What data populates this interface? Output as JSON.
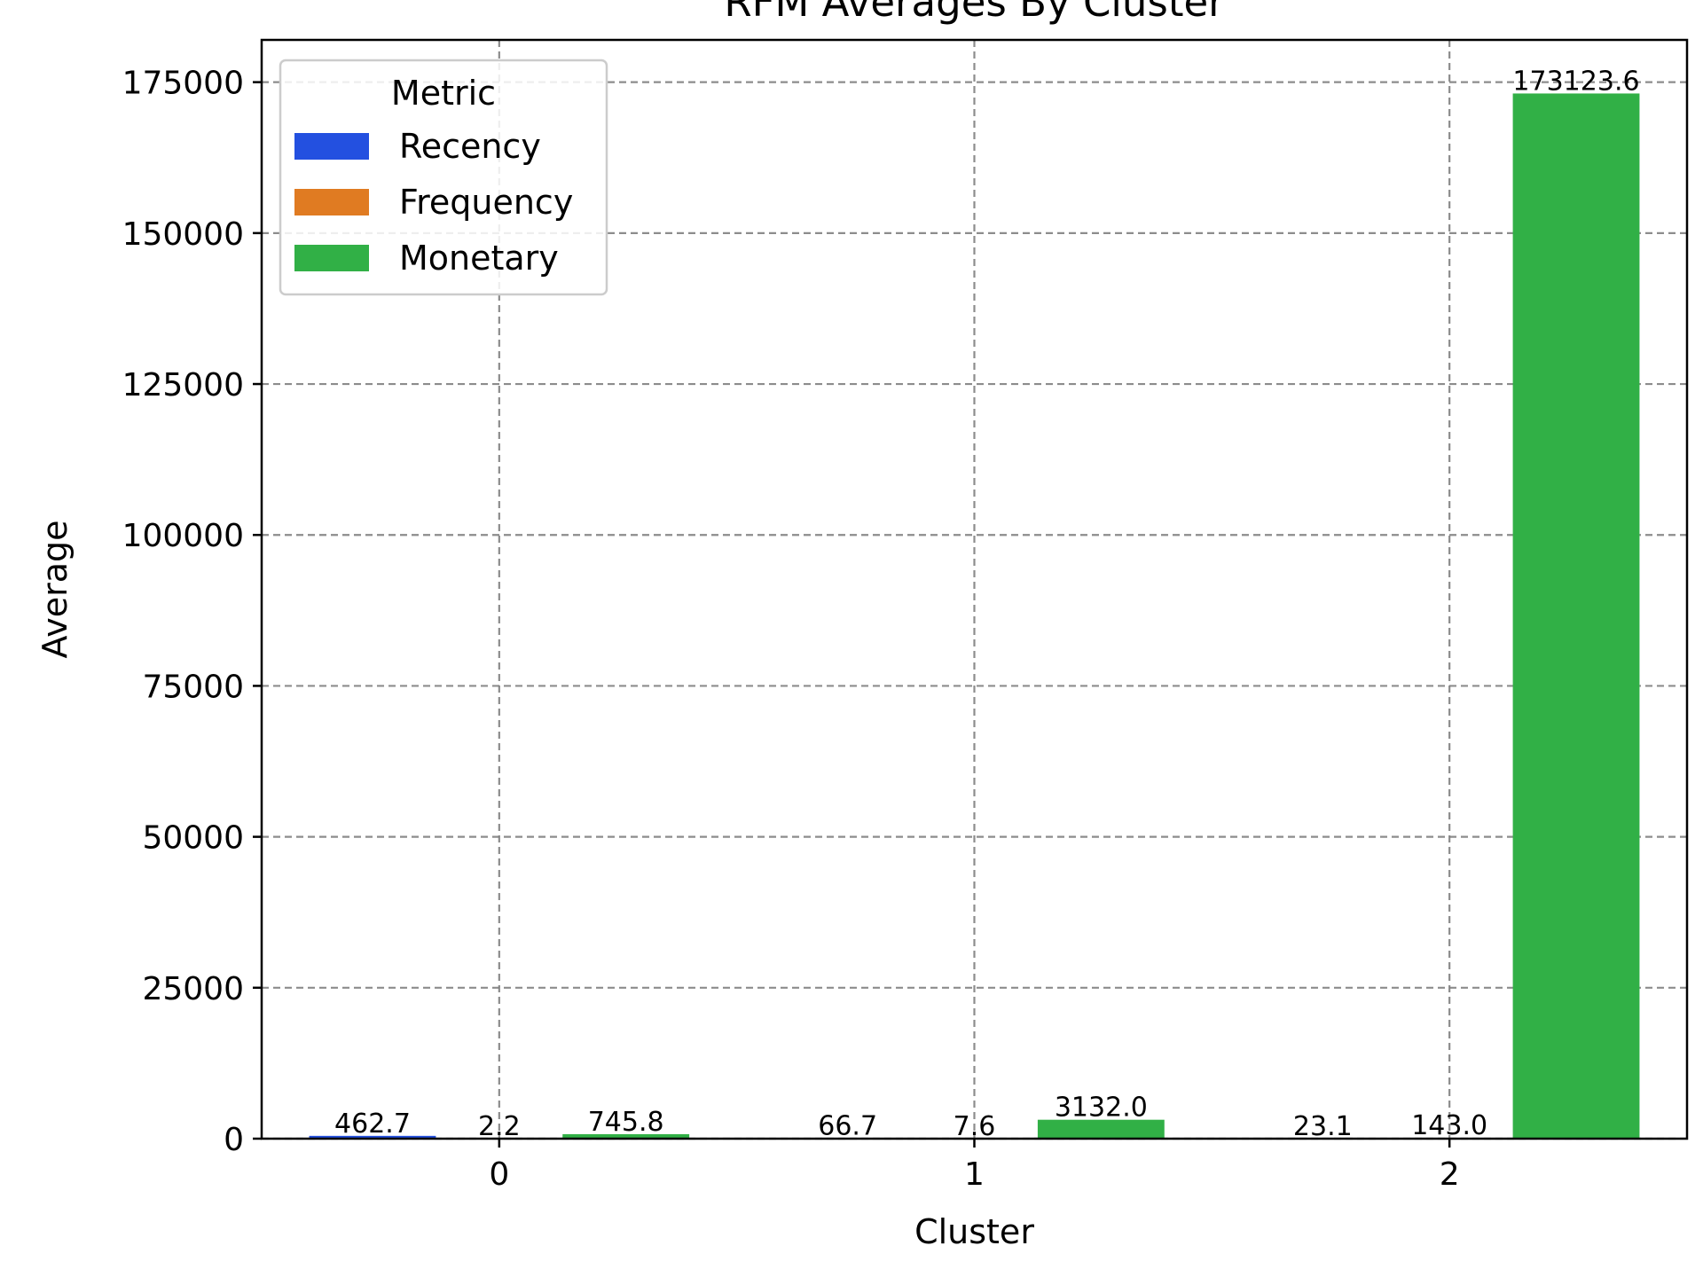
{
  "chart_data": {
    "type": "bar",
    "title": "RFM Averages By Cluster",
    "xlabel": "Cluster",
    "ylabel": "Average",
    "categories": [
      "0",
      "1",
      "2"
    ],
    "series": [
      {
        "name": "Recency",
        "color": "#2350e0",
        "values": [
          462.7,
          66.7,
          23.1
        ],
        "labels": [
          "462.7",
          "66.7",
          "23.1"
        ]
      },
      {
        "name": "Frequency",
        "color": "#e07b22",
        "values": [
          2.2,
          7.6,
          143.0
        ],
        "labels": [
          "2.2",
          "7.6",
          "143.0"
        ]
      },
      {
        "name": "Monetary",
        "color": "#31b046",
        "values": [
          745.8,
          3132.0,
          173123.6
        ],
        "labels": [
          "745.8",
          "3132.0",
          "173123.6"
        ]
      }
    ],
    "ylim": [
      0,
      182000
    ],
    "yticks": [
      0,
      25000,
      50000,
      75000,
      100000,
      125000,
      150000,
      175000
    ],
    "ytick_labels": [
      "0",
      "25000",
      "50000",
      "75000",
      "100000",
      "125000",
      "150000",
      "175000"
    ],
    "grid": true,
    "legend": {
      "title": "Metric",
      "placement": "upper-left"
    }
  }
}
